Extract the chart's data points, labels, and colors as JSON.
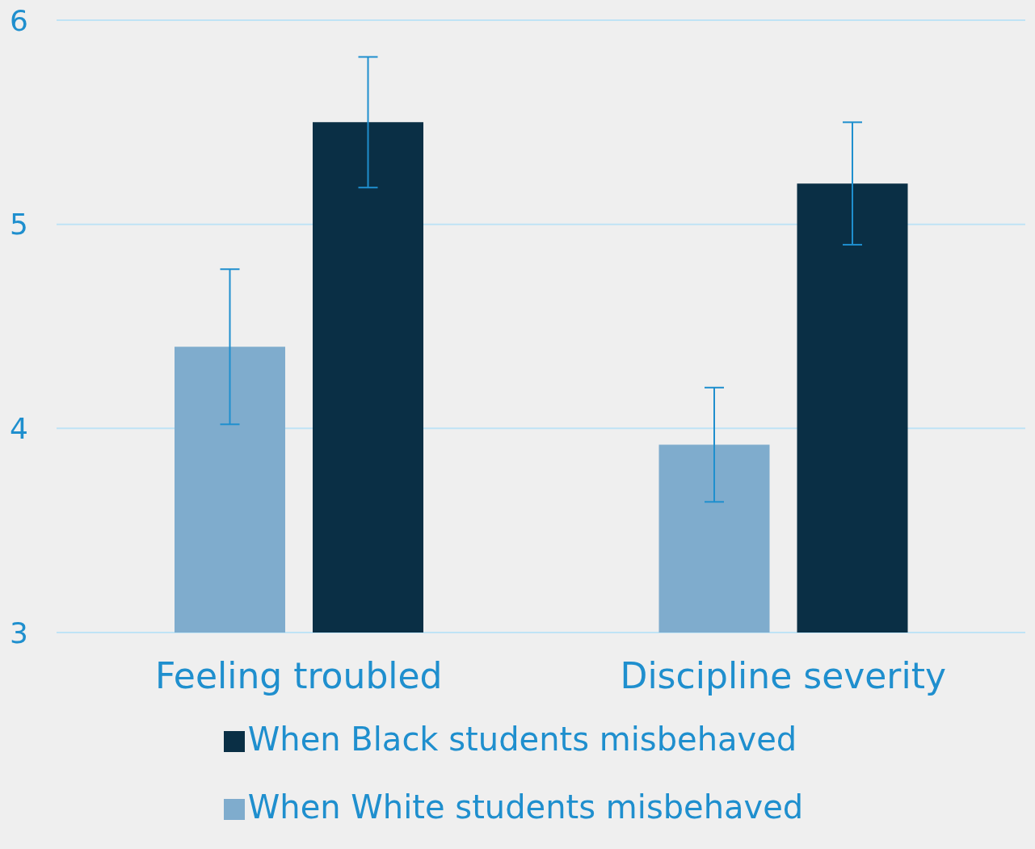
{
  "chart_data": {
    "type": "bar",
    "categories": [
      "Feeling troubled",
      "Discipline severity"
    ],
    "series": [
      {
        "name": "When White students misbehaved",
        "color": "#7faccd",
        "values": [
          4.4,
          3.92
        ],
        "errors": [
          0.38,
          0.28
        ]
      },
      {
        "name": "When Black students misbehaved",
        "color": "#0a2f45",
        "values": [
          5.5,
          5.2
        ],
        "errors": [
          0.32,
          0.3
        ]
      }
    ],
    "ylim": [
      3,
      6
    ],
    "yticks": [
      3,
      4,
      5,
      6
    ],
    "grid": "y",
    "legend": "bottom"
  }
}
